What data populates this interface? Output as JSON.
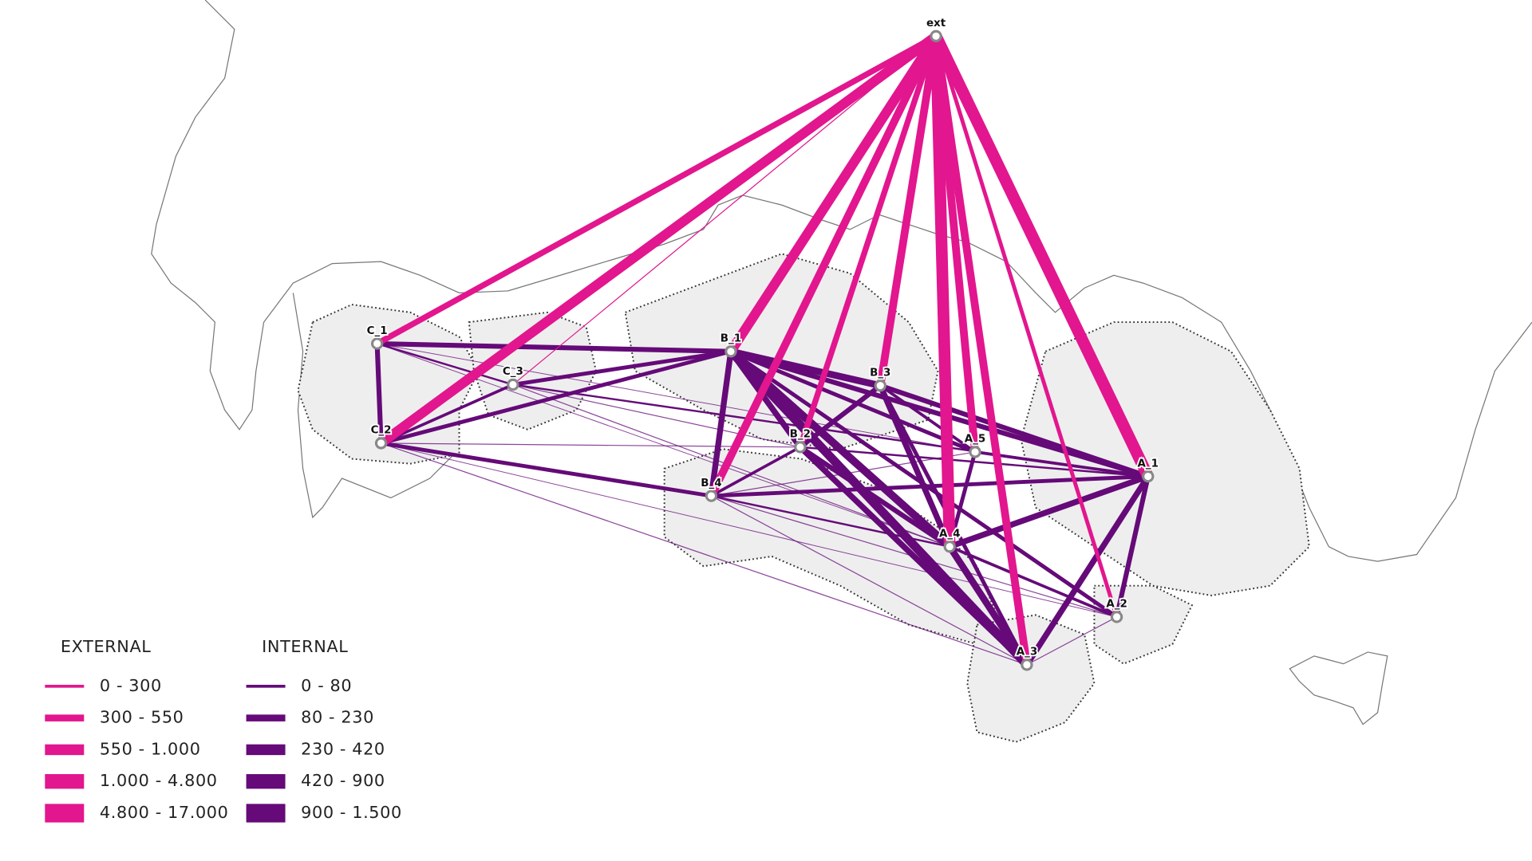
{
  "nodes": [
    {
      "label": "ext"
    },
    {
      "label": "C_1"
    },
    {
      "label": "C_2"
    },
    {
      "label": "C_3"
    },
    {
      "label": "B_1"
    },
    {
      "label": "B_2"
    },
    {
      "label": "B_3"
    },
    {
      "label": "B_4"
    },
    {
      "label": "A_1"
    },
    {
      "label": "A_2"
    },
    {
      "label": "A_3"
    },
    {
      "label": "A_4"
    },
    {
      "label": "A_5"
    }
  ],
  "legend": {
    "external": {
      "title": "EXTERNAL",
      "items": [
        "0 - 300",
        "300 - 550",
        "550 - 1.000",
        "1.000 - 4.800",
        "4.800 - 17.000"
      ]
    },
    "internal": {
      "title": "INTERNAL",
      "items": [
        "0 - 80",
        "80 - 230",
        "230 - 420",
        "420 - 900",
        "900 - 1.500"
      ]
    }
  }
}
